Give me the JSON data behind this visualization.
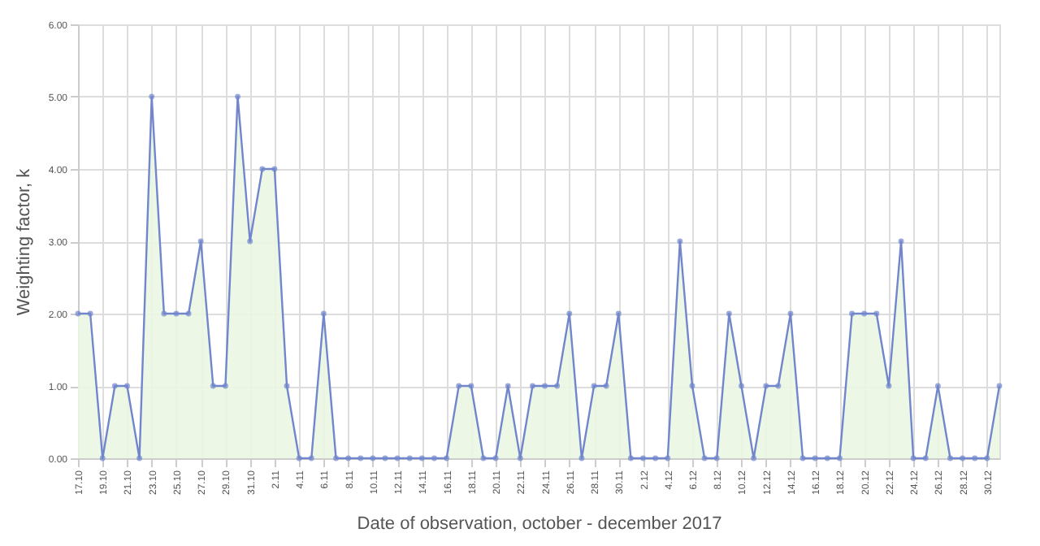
{
  "chart_data": {
    "type": "area",
    "xlabel": "Date of observation, october - december 2017",
    "ylabel": "Weighting factor, k",
    "categories": [
      "17.10",
      null,
      "19.10",
      null,
      "21.10",
      null,
      "23.10",
      null,
      "25.10",
      null,
      "27.10",
      null,
      "29.10",
      null,
      "31.10",
      null,
      "2.11",
      null,
      "4.11",
      null,
      "6.11",
      null,
      "8.11",
      null,
      "10.11",
      null,
      "12.11",
      null,
      "14.11",
      null,
      "16.11",
      null,
      "18.11",
      null,
      "20.11",
      null,
      "22.11",
      null,
      "24.11",
      null,
      "26.11",
      null,
      "28.11",
      null,
      "30.11",
      null,
      "2.12",
      null,
      "4.12",
      null,
      "6.12",
      null,
      "8.12",
      null,
      "10.12",
      null,
      "12.12",
      null,
      "14.12",
      null,
      "16.12",
      null,
      "18.12",
      null,
      "20.12",
      null,
      "22.12",
      null,
      "24.12",
      null,
      "26.12",
      null,
      "28.12",
      null,
      "30.12",
      null
    ],
    "series": [
      {
        "color": "#7186cc",
        "values": [
          2,
          2,
          0,
          1,
          1,
          0,
          5,
          2,
          2,
          2,
          3,
          1,
          1,
          5,
          3,
          4,
          4,
          1,
          0,
          0,
          2,
          0,
          0,
          0,
          0,
          0,
          0,
          0,
          0,
          0,
          0,
          1,
          1,
          0,
          0,
          1,
          0,
          1,
          1,
          1,
          2,
          0,
          1,
          1,
          2,
          0,
          0,
          0,
          0,
          3,
          1,
          0,
          0,
          2,
          1,
          0,
          1,
          1,
          2,
          0,
          0,
          0,
          0,
          2,
          2,
          2,
          1,
          3,
          0,
          0,
          1,
          0,
          0,
          0,
          0,
          1
        ]
      }
    ],
    "ylim": [
      0,
      6
    ],
    "yticks": [
      {
        "value": 0,
        "label": "0.00"
      },
      {
        "value": 1,
        "label": "1.00"
      },
      {
        "value": 2,
        "label": "2.00"
      },
      {
        "value": 3,
        "label": "3.00"
      },
      {
        "value": 4,
        "label": "4.00"
      },
      {
        "value": 5,
        "label": "5.00"
      },
      {
        "value": 6,
        "label": "6.00"
      }
    ],
    "grid": true,
    "marker": "circle",
    "line_style": "solid"
  }
}
